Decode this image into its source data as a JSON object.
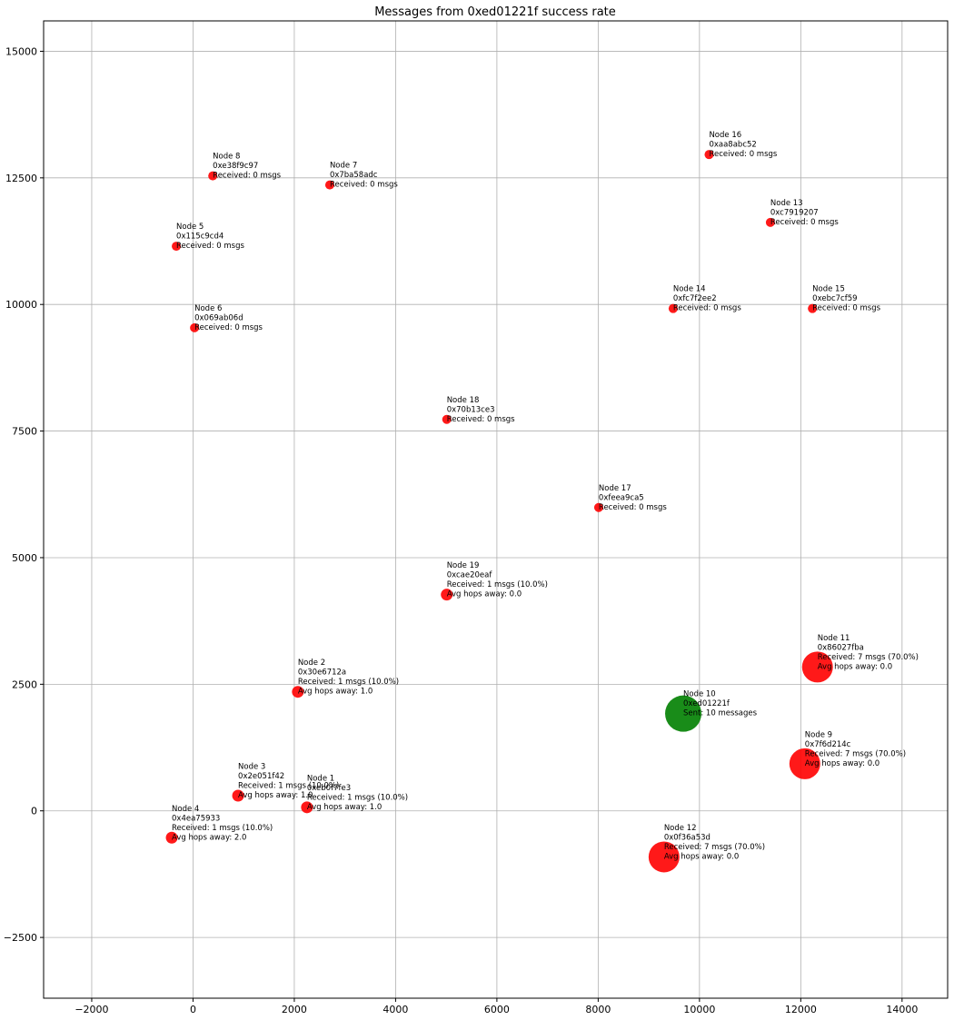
{
  "chart_data": {
    "type": "scatter",
    "title": "Messages from 0xed01221f success rate",
    "xlabel": "",
    "ylabel": "",
    "xlim": [
      -2950,
      14900
    ],
    "ylim": [
      -3700,
      15600
    ],
    "xticks": [
      -2000,
      0,
      2000,
      4000,
      6000,
      8000,
      10000,
      12000,
      14000
    ],
    "yticks": [
      -2500,
      0,
      2500,
      5000,
      7500,
      10000,
      12500,
      15000
    ],
    "grid": true,
    "colors": {
      "sender": "#008000",
      "receiver": "#ff0000"
    },
    "points": [
      {
        "x": 2250,
        "y": 70,
        "size": 1,
        "color": "receiver",
        "lines": [
          "Node 1",
          "0xeb0f7fe3",
          "Received: 1 msgs (10.0%)",
          "Avg hops away: 1.0"
        ]
      },
      {
        "x": 2070,
        "y": 2350,
        "size": 1,
        "color": "receiver",
        "lines": [
          "Node 2",
          "0x30e6712a",
          "Received: 1 msgs (10.0%)",
          "Avg hops away: 1.0"
        ]
      },
      {
        "x": 890,
        "y": 300,
        "size": 1,
        "color": "receiver",
        "lines": [
          "Node 3",
          "0x2e051f42",
          "Received: 1 msgs (10.0%)",
          "Avg hops away: 1.0"
        ]
      },
      {
        "x": -420,
        "y": -530,
        "size": 1,
        "color": "receiver",
        "lines": [
          "Node 4",
          "0x4ea75933",
          "Received: 1 msgs (10.0%)",
          "Avg hops away: 2.0"
        ]
      },
      {
        "x": -330,
        "y": 11150,
        "size": 0,
        "color": "receiver",
        "lines": [
          "Node 5",
          "0x115c9cd4",
          "Received: 0 msgs"
        ]
      },
      {
        "x": 30,
        "y": 9540,
        "size": 0,
        "color": "receiver",
        "lines": [
          "Node 6",
          "0x069ab06d",
          "Received: 0 msgs"
        ]
      },
      {
        "x": 2700,
        "y": 12360,
        "size": 0,
        "color": "receiver",
        "lines": [
          "Node 7",
          "0x7ba58adc",
          "Received: 0 msgs"
        ]
      },
      {
        "x": 390,
        "y": 12540,
        "size": 0,
        "color": "receiver",
        "lines": [
          "Node 8",
          "0xe38f9c97",
          "Received: 0 msgs"
        ]
      },
      {
        "x": 12080,
        "y": 930,
        "size": 7,
        "color": "receiver",
        "lines": [
          "Node 9",
          "0x7f6d214c",
          "Received: 7 msgs (70.0%)",
          "Avg hops away: 0.0"
        ]
      },
      {
        "x": 9680,
        "y": 1920,
        "size": 10,
        "color": "sender",
        "lines": [
          "Node 10",
          "0xed01221f",
          "Sent: 10 messages"
        ]
      },
      {
        "x": 12330,
        "y": 2840,
        "size": 7,
        "color": "receiver",
        "lines": [
          "Node 11",
          "0x86027fba",
          "Received: 7 msgs (70.0%)",
          "Avg hops away: 0.0"
        ]
      },
      {
        "x": 9300,
        "y": -910,
        "size": 7,
        "color": "receiver",
        "lines": [
          "Node 12",
          "0x0f36a53d",
          "Received: 7 msgs (70.0%)",
          "Avg hops away: 0.0"
        ]
      },
      {
        "x": 11400,
        "y": 11620,
        "size": 0,
        "color": "receiver",
        "lines": [
          "Node 13",
          "0xc7919207",
          "Received: 0 msgs"
        ]
      },
      {
        "x": 9480,
        "y": 9920,
        "size": 0,
        "color": "receiver",
        "lines": [
          "Node 14",
          "0xfc7f2ee2",
          "Received: 0 msgs"
        ]
      },
      {
        "x": 12230,
        "y": 9920,
        "size": 0,
        "color": "receiver",
        "lines": [
          "Node 15",
          "0xebc7cf59",
          "Received: 0 msgs"
        ]
      },
      {
        "x": 10190,
        "y": 12960,
        "size": 0,
        "color": "receiver",
        "lines": [
          "Node 16",
          "0xaa8abc52",
          "Received: 0 msgs"
        ]
      },
      {
        "x": 8010,
        "y": 5990,
        "size": 0,
        "color": "receiver",
        "lines": [
          "Node 17",
          "0xfeea9ca5",
          "Received: 0 msgs"
        ]
      },
      {
        "x": 5010,
        "y": 7730,
        "size": 0,
        "color": "receiver",
        "lines": [
          "Node 18",
          "0x70b13ce3",
          "Received: 0 msgs"
        ]
      },
      {
        "x": 5010,
        "y": 4270,
        "size": 1,
        "color": "receiver",
        "lines": [
          "Node 19",
          "0xcae20eaf",
          "Received: 1 msgs (10.0%)",
          "Avg hops away: 0.0"
        ]
      }
    ]
  }
}
